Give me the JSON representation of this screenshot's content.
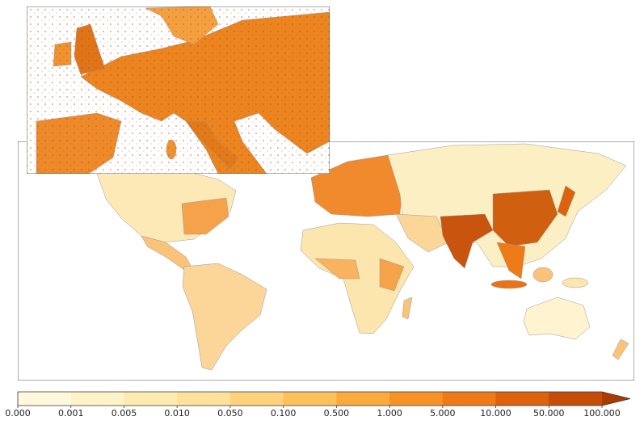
{
  "colorbar": {
    "ticks": [
      {
        "value": 0,
        "label": "0.000"
      },
      {
        "value": 0.001,
        "label": "0.001"
      },
      {
        "value": 0.005,
        "label": "0.005"
      },
      {
        "value": 0.01,
        "label": "0.010"
      },
      {
        "value": 0.05,
        "label": "0.050"
      },
      {
        "value": 0.1,
        "label": "0.100"
      },
      {
        "value": 0.5,
        "label": "0.500"
      },
      {
        "value": 1,
        "label": "1.000"
      },
      {
        "value": 5,
        "label": "5.000"
      },
      {
        "value": 10,
        "label": "10.000"
      },
      {
        "value": 50,
        "label": "50.000"
      },
      {
        "value": 100,
        "label": "100.000"
      }
    ],
    "colors": [
      "#fff8dc",
      "#fff3c8",
      "#ffebb0",
      "#fee19a",
      "#fed17a",
      "#fdc15c",
      "#fbaa3e",
      "#f79227",
      "#ef7a18",
      "#dc620e",
      "#c44e07"
    ],
    "extend_color": "#a93b03"
  }
}
